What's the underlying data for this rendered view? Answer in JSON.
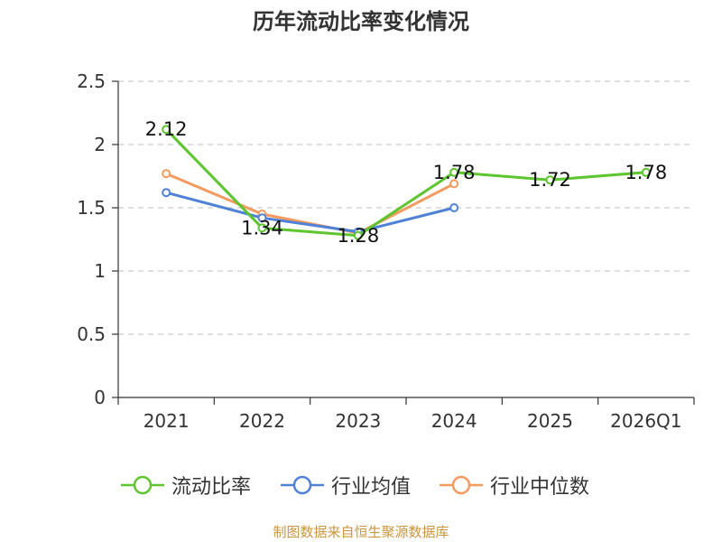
{
  "chart_data": {
    "type": "line",
    "title": "历年流动比率变化情况",
    "categories": [
      "2021",
      "2022",
      "2023",
      "2024",
      "2025",
      "2026Q1"
    ],
    "ylim": [
      0,
      2.5
    ],
    "yticks": [
      "0",
      "0.5",
      "1",
      "1.5",
      "2",
      "2.5"
    ],
    "grid": true,
    "legend_position": "bottom",
    "series": [
      {
        "name": "流动比率",
        "color": "#5cc52f",
        "values": [
          2.12,
          1.34,
          1.28,
          1.78,
          1.72,
          1.78
        ],
        "labels": [
          "2.12",
          "1.34",
          "1.28",
          "1.78",
          "1.72",
          "1.78"
        ]
      },
      {
        "name": "行业均值",
        "color": "#4f82d6",
        "values": [
          1.62,
          1.42,
          1.31,
          1.5,
          null,
          null
        ]
      },
      {
        "name": "行业中位数",
        "color": "#f59a5f",
        "values": [
          1.77,
          1.45,
          1.3,
          1.69,
          null,
          null
        ]
      }
    ],
    "source": "制图数据来自恒生聚源数据库"
  }
}
